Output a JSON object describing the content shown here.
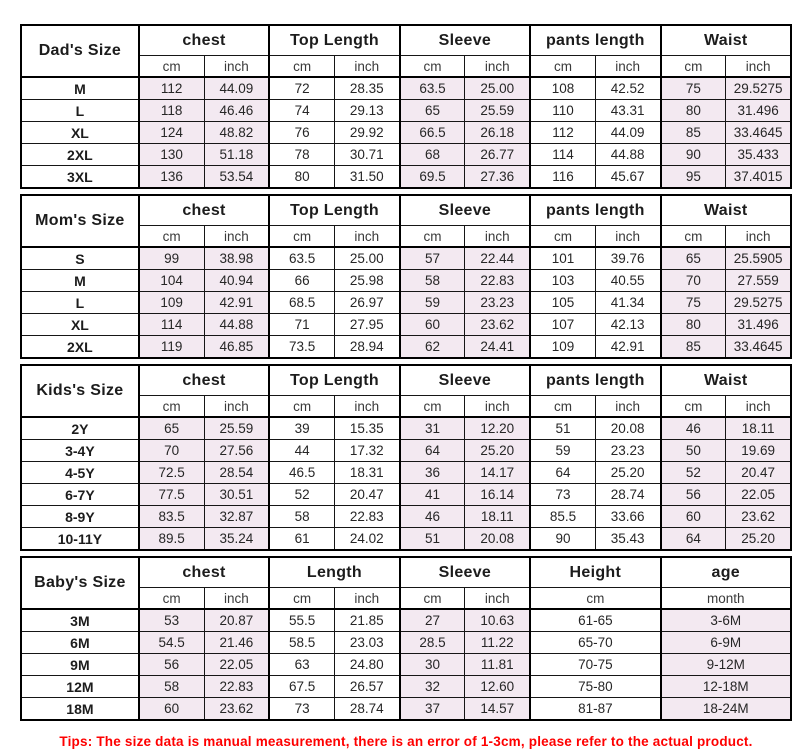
{
  "tips": "Tips: The size data is manual measurement, there is an error of 1-3cm, please refer to the actual product.",
  "colors": {
    "highlight": "#f3e9f1",
    "border": "#000000",
    "tips_red": "#fe0000",
    "text": "#1c1c1c"
  },
  "sections": [
    {
      "id": "dads",
      "label": "Dad's Size",
      "groups": [
        {
          "label": "chest",
          "units": [
            "cm",
            "inch"
          ],
          "shaded": true
        },
        {
          "label": "Top Length",
          "units": [
            "cm",
            "inch"
          ],
          "shaded": false
        },
        {
          "label": "Sleeve",
          "units": [
            "cm",
            "inch"
          ],
          "shaded": true
        },
        {
          "label": "pants length",
          "units": [
            "cm",
            "inch"
          ],
          "shaded": false
        },
        {
          "label": "Waist",
          "units": [
            "cm",
            "inch"
          ],
          "shaded": true
        }
      ],
      "rows": [
        {
          "size": "M",
          "cells": [
            "112",
            "44.09",
            "72",
            "28.35",
            "63.5",
            "25.00",
            "108",
            "42.52",
            "75",
            "29.5275"
          ]
        },
        {
          "size": "L",
          "cells": [
            "118",
            "46.46",
            "74",
            "29.13",
            "65",
            "25.59",
            "110",
            "43.31",
            "80",
            "31.496"
          ]
        },
        {
          "size": "XL",
          "cells": [
            "124",
            "48.82",
            "76",
            "29.92",
            "66.5",
            "26.18",
            "112",
            "44.09",
            "85",
            "33.4645"
          ]
        },
        {
          "size": "2XL",
          "cells": [
            "130",
            "51.18",
            "78",
            "30.71",
            "68",
            "26.77",
            "114",
            "44.88",
            "90",
            "35.433"
          ]
        },
        {
          "size": "3XL",
          "cells": [
            "136",
            "53.54",
            "80",
            "31.50",
            "69.5",
            "27.36",
            "116",
            "45.67",
            "95",
            "37.4015"
          ]
        }
      ]
    },
    {
      "id": "moms",
      "label": "Mom's Size",
      "groups": [
        {
          "label": "chest",
          "units": [
            "cm",
            "inch"
          ],
          "shaded": true
        },
        {
          "label": "Top Length",
          "units": [
            "cm",
            "inch"
          ],
          "shaded": false
        },
        {
          "label": "Sleeve",
          "units": [
            "cm",
            "inch"
          ],
          "shaded": true
        },
        {
          "label": "pants length",
          "units": [
            "cm",
            "inch"
          ],
          "shaded": false
        },
        {
          "label": "Waist",
          "units": [
            "cm",
            "inch"
          ],
          "shaded": true
        }
      ],
      "rows": [
        {
          "size": "S",
          "cells": [
            "99",
            "38.98",
            "63.5",
            "25.00",
            "57",
            "22.44",
            "101",
            "39.76",
            "65",
            "25.5905"
          ]
        },
        {
          "size": "M",
          "cells": [
            "104",
            "40.94",
            "66",
            "25.98",
            "58",
            "22.83",
            "103",
            "40.55",
            "70",
            "27.559"
          ]
        },
        {
          "size": "L",
          "cells": [
            "109",
            "42.91",
            "68.5",
            "26.97",
            "59",
            "23.23",
            "105",
            "41.34",
            "75",
            "29.5275"
          ]
        },
        {
          "size": "XL",
          "cells": [
            "114",
            "44.88",
            "71",
            "27.95",
            "60",
            "23.62",
            "107",
            "42.13",
            "80",
            "31.496"
          ]
        },
        {
          "size": "2XL",
          "cells": [
            "119",
            "46.85",
            "73.5",
            "28.94",
            "62",
            "24.41",
            "109",
            "42.91",
            "85",
            "33.4645"
          ]
        }
      ]
    },
    {
      "id": "kids",
      "label": "Kids's Size",
      "groups": [
        {
          "label": "chest",
          "units": [
            "cm",
            "inch"
          ],
          "shaded": true
        },
        {
          "label": "Top Length",
          "units": [
            "cm",
            "inch"
          ],
          "shaded": false
        },
        {
          "label": "Sleeve",
          "units": [
            "cm",
            "inch"
          ],
          "shaded": true
        },
        {
          "label": "pants length",
          "units": [
            "cm",
            "inch"
          ],
          "shaded": false
        },
        {
          "label": "Waist",
          "units": [
            "cm",
            "inch"
          ],
          "shaded": true
        }
      ],
      "rows": [
        {
          "size": "2Y",
          "cells": [
            "65",
            "25.59",
            "39",
            "15.35",
            "31",
            "12.20",
            "51",
            "20.08",
            "46",
            "18.11"
          ]
        },
        {
          "size": "3-4Y",
          "cells": [
            "70",
            "27.56",
            "44",
            "17.32",
            "64",
            "25.20",
            "59",
            "23.23",
            "50",
            "19.69"
          ]
        },
        {
          "size": "4-5Y",
          "cells": [
            "72.5",
            "28.54",
            "46.5",
            "18.31",
            "36",
            "14.17",
            "64",
            "25.20",
            "52",
            "20.47"
          ]
        },
        {
          "size": "6-7Y",
          "cells": [
            "77.5",
            "30.51",
            "52",
            "20.47",
            "41",
            "16.14",
            "73",
            "28.74",
            "56",
            "22.05"
          ]
        },
        {
          "size": "8-9Y",
          "cells": [
            "83.5",
            "32.87",
            "58",
            "22.83",
            "46",
            "18.11",
            "85.5",
            "33.66",
            "60",
            "23.62"
          ]
        },
        {
          "size": "10-11Y",
          "cells": [
            "89.5",
            "35.24",
            "61",
            "24.02",
            "51",
            "20.08",
            "90",
            "35.43",
            "64",
            "25.20"
          ]
        }
      ]
    },
    {
      "id": "babys",
      "label": "Baby's Size",
      "groups": [
        {
          "label": "chest",
          "units": [
            "cm",
            "inch"
          ],
          "shaded": true
        },
        {
          "label": "Length",
          "units": [
            "cm",
            "inch"
          ],
          "shaded": false
        },
        {
          "label": "Sleeve",
          "units": [
            "cm",
            "inch"
          ],
          "shaded": true
        },
        {
          "label": "Height",
          "units": [
            "cm"
          ],
          "unit_span": 2,
          "shaded": false
        },
        {
          "label": "age",
          "units": [
            "month"
          ],
          "unit_span": 2,
          "shaded": true
        }
      ],
      "rows": [
        {
          "size": "3M",
          "cells": [
            "53",
            "20.87",
            "55.5",
            "21.85",
            "27",
            "10.63",
            "61-65",
            "3-6M"
          ]
        },
        {
          "size": "6M",
          "cells": [
            "54.5",
            "21.46",
            "58.5",
            "23.03",
            "28.5",
            "11.22",
            "65-70",
            "6-9M"
          ]
        },
        {
          "size": "9M",
          "cells": [
            "56",
            "22.05",
            "63",
            "24.80",
            "30",
            "11.81",
            "70-75",
            "9-12M"
          ]
        },
        {
          "size": "12M",
          "cells": [
            "58",
            "22.83",
            "67.5",
            "26.57",
            "32",
            "12.60",
            "75-80",
            "12-18M"
          ]
        },
        {
          "size": "18M",
          "cells": [
            "60",
            "23.62",
            "73",
            "28.74",
            "37",
            "14.57",
            "81-87",
            "18-24M"
          ]
        }
      ]
    }
  ]
}
